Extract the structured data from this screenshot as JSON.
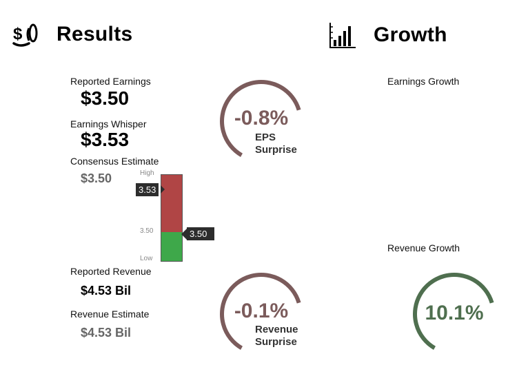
{
  "results": {
    "title": "Results",
    "reported_earnings_label": "Reported Earnings",
    "reported_earnings_value": "$3.50",
    "whisper_label": "Earnings Whisper",
    "whisper_value": "$3.53",
    "consensus_label": "Consensus Estimate",
    "consensus_value": "$3.50",
    "reported_revenue_label": "Reported Revenue",
    "reported_revenue_value": "$4.53 Bil",
    "revenue_estimate_label": "Revenue Estimate",
    "revenue_estimate_value": "$4.53 Bil"
  },
  "range_bar": {
    "high_label": "High",
    "low_label": "Low",
    "mid_label": "3.50",
    "whisper_tag": "3.53",
    "actual_tag": "3.50"
  },
  "eps_gauge": {
    "percent": "-0.8%",
    "line1": "EPS",
    "line2": "Surprise",
    "fraction": 0.62
  },
  "revenue_gauge": {
    "percent": "-0.1%",
    "line1": "Revenue",
    "line2": "Surprise",
    "fraction": 0.62
  },
  "growth": {
    "title": "Growth",
    "earnings_growth_label": "Earnings Growth",
    "revenue_growth_label": "Revenue Growth",
    "revenue_growth_value": "10.1%",
    "revenue_growth_fraction": 0.62
  },
  "colors": {
    "surprise_ring": "#7b5b5b",
    "growth_ring": "#4f6f4f",
    "bar_red": "#b04545",
    "bar_green": "#3ea84a",
    "bar_border": "#555555"
  }
}
